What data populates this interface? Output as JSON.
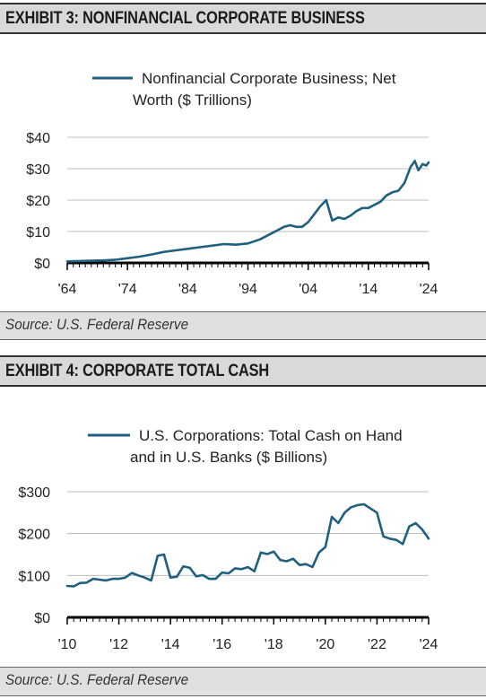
{
  "exhibits": [
    {
      "header": "EXHIBIT 3: NONFINANCIAL CORPORATE BUSINESS",
      "source": "Source: U.S. Federal Reserve"
    },
    {
      "header": "EXHIBIT 4: CORPORATE TOTAL CASH",
      "source": "Source: U.S. Federal Reserve"
    }
  ],
  "chart_data": [
    {
      "type": "line",
      "legend": [
        "Nonfinancial Corporate Business; Net",
        "Worth ($ Trillions)"
      ],
      "series": [
        {
          "name": "Nonfinancial Corporate Business; Net Worth ($ Trillions)",
          "x": [
            1964,
            1966,
            1968,
            1970,
            1972,
            1974,
            1976,
            1978,
            1980,
            1982,
            1984,
            1986,
            1988,
            1990,
            1992,
            1994,
            1996,
            1998,
            2000,
            2001,
            2002,
            2003,
            2004,
            2005,
            2006,
            2007,
            2008,
            2009,
            2010,
            2011,
            2012,
            2013,
            2014,
            2015,
            2016,
            2017,
            2018,
            2019,
            2020,
            2021,
            2021.7,
            2022.3,
            2023,
            2023.6,
            2024
          ],
          "values": [
            0.5,
            0.6,
            0.7,
            0.8,
            1.0,
            1.5,
            2.0,
            2.7,
            3.5,
            4.0,
            4.5,
            5.0,
            5.5,
            6.0,
            5.8,
            6.2,
            7.5,
            9.5,
            11.5,
            12.0,
            11.5,
            11.5,
            13.0,
            15.5,
            18.0,
            20.0,
            13.5,
            14.5,
            14.0,
            15.0,
            16.5,
            17.5,
            17.5,
            18.5,
            19.5,
            21.5,
            22.5,
            23.0,
            25.5,
            30.5,
            32.5,
            29.5,
            31.5,
            31.0,
            32.0
          ]
        }
      ],
      "x_ticks": [
        "'64",
        "'74",
        "'84",
        "'94",
        "'04",
        "'14",
        "'24"
      ],
      "y_ticks": [
        "$0",
        "$10",
        "$20",
        "$30",
        "$40"
      ],
      "xlim": [
        1964,
        2024
      ],
      "ylim": [
        0,
        40
      ],
      "color": "#1f5f80",
      "grid": true
    },
    {
      "type": "line",
      "legend": [
        "U.S. Corporations: Total Cash on Hand",
        "and in U.S. Banks ($ Billions)"
      ],
      "series": [
        {
          "name": "U.S. Corporations: Total Cash on Hand and in U.S. Banks ($ Billions)",
          "x": [
            2010,
            2010.25,
            2010.5,
            2010.75,
            2011,
            2011.25,
            2011.5,
            2011.75,
            2012,
            2012.25,
            2012.5,
            2012.75,
            2013,
            2013.25,
            2013.5,
            2013.75,
            2014,
            2014.25,
            2014.5,
            2014.75,
            2015,
            2015.25,
            2015.5,
            2015.75,
            2016,
            2016.25,
            2016.5,
            2016.75,
            2017,
            2017.25,
            2017.5,
            2017.75,
            2018,
            2018.25,
            2018.5,
            2018.75,
            2019,
            2019.25,
            2019.5,
            2019.75,
            2020,
            2020.25,
            2020.5,
            2020.75,
            2021,
            2021.25,
            2021.5,
            2021.75,
            2022,
            2022.25,
            2022.5,
            2022.75,
            2023,
            2023.25,
            2023.5,
            2023.75,
            2024
          ],
          "values": [
            75,
            74,
            82,
            83,
            92,
            90,
            88,
            92,
            92,
            95,
            106,
            100,
            95,
            88,
            147,
            150,
            95,
            97,
            122,
            118,
            98,
            101,
            92,
            92,
            107,
            105,
            117,
            115,
            120,
            110,
            155,
            151,
            157,
            137,
            134,
            140,
            125,
            127,
            120,
            155,
            168,
            240,
            225,
            250,
            263,
            268,
            270,
            260,
            250,
            193,
            188,
            185,
            175,
            217,
            225,
            210,
            188
          ]
        }
      ],
      "x_ticks": [
        "'10",
        "'12",
        "'14",
        "'16",
        "'18",
        "'20",
        "'22",
        "'24"
      ],
      "y_ticks": [
        "$0",
        "$100",
        "$200",
        "$300"
      ],
      "xlim": [
        2010,
        2024
      ],
      "ylim": [
        0,
        300
      ],
      "color": "#1f5f80",
      "grid": true
    }
  ]
}
